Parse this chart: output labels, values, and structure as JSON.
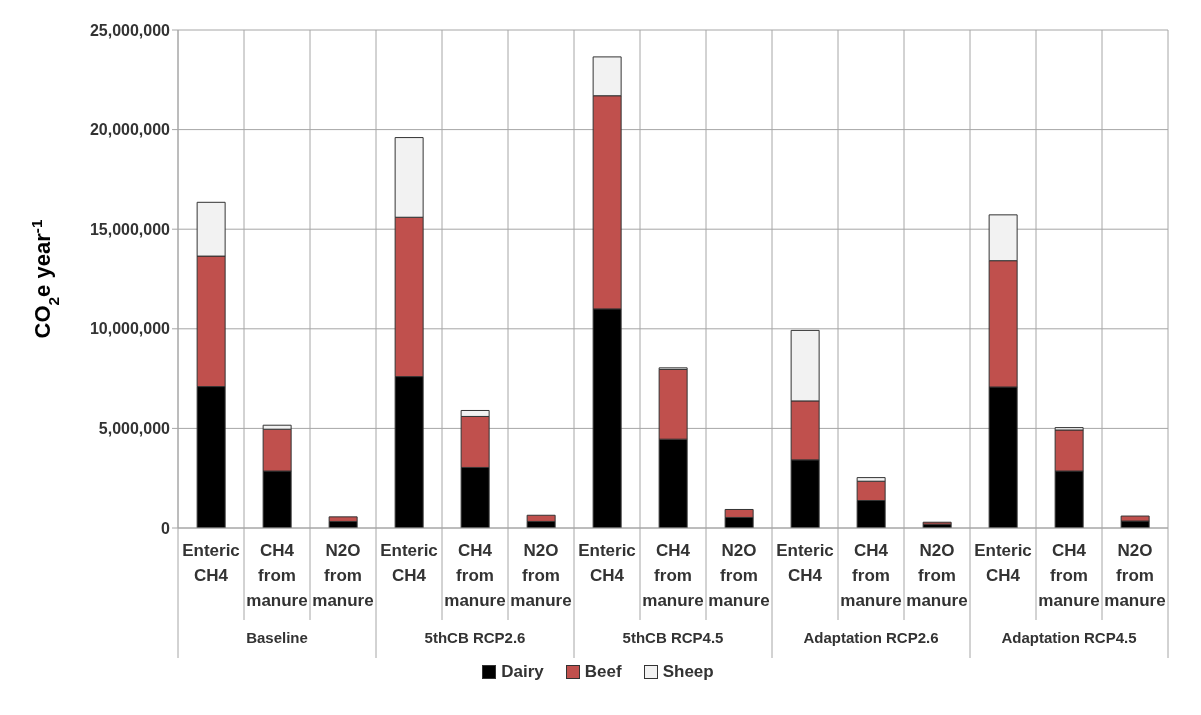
{
  "chart_data": {
    "type": "bar",
    "stacked": true,
    "ylabel": "CO$_{2}$e year$^{-1}$",
    "categories": [
      "Enteric CH4",
      "CH4 from manure",
      "N2O from manure",
      "Enteric CH4",
      "CH4 from manure",
      "N2O from manure",
      "Enteric CH4",
      "CH4 from manure",
      "N2O from manure",
      "Enteric CH4",
      "CH4 from manure",
      "N2O from manure",
      "Enteric CH4",
      "CH4 from manure",
      "N2O from manure"
    ],
    "series": [
      {
        "name": "Dairy",
        "color": "#000000",
        "values": [
          7100000,
          2860000,
          330000,
          7600000,
          3040000,
          330000,
          11000000,
          4460000,
          530000,
          3420000,
          1380000,
          190000,
          7080000,
          2860000,
          350000
        ]
      },
      {
        "name": "Beef",
        "color": "#c0504d",
        "values": [
          6550000,
          2100000,
          230000,
          8000000,
          2560000,
          310000,
          10700000,
          3500000,
          400000,
          2960000,
          970000,
          100000,
          6340000,
          2060000,
          250000
        ]
      },
      {
        "name": "Sheep",
        "color": "#f2f2f2",
        "values": [
          2700000,
          200000,
          null,
          4000000,
          300000,
          null,
          1950000,
          80000,
          null,
          3540000,
          180000,
          null,
          2300000,
          120000,
          null
        ]
      }
    ],
    "annotations": [
      "Baseline",
      "5thCB RCP2.6",
      "5thCB RCP4.5",
      "Adaptation RCP2.6",
      "Adaptation RCP4.5"
    ],
    "ylim": [
      0,
      25000000
    ],
    "yticks": [
      {
        "value": 0,
        "label": "0"
      },
      {
        "value": 5000000,
        "label": "5,000,000"
      },
      {
        "value": 10000000,
        "label": "10,000,000"
      },
      {
        "value": 15000000,
        "label": "15,000,000"
      },
      {
        "value": 20000000,
        "label": "20,000,000"
      },
      {
        "value": 25000000,
        "label": "25,000,000"
      }
    ],
    "grid": true,
    "legend": "bottom"
  }
}
